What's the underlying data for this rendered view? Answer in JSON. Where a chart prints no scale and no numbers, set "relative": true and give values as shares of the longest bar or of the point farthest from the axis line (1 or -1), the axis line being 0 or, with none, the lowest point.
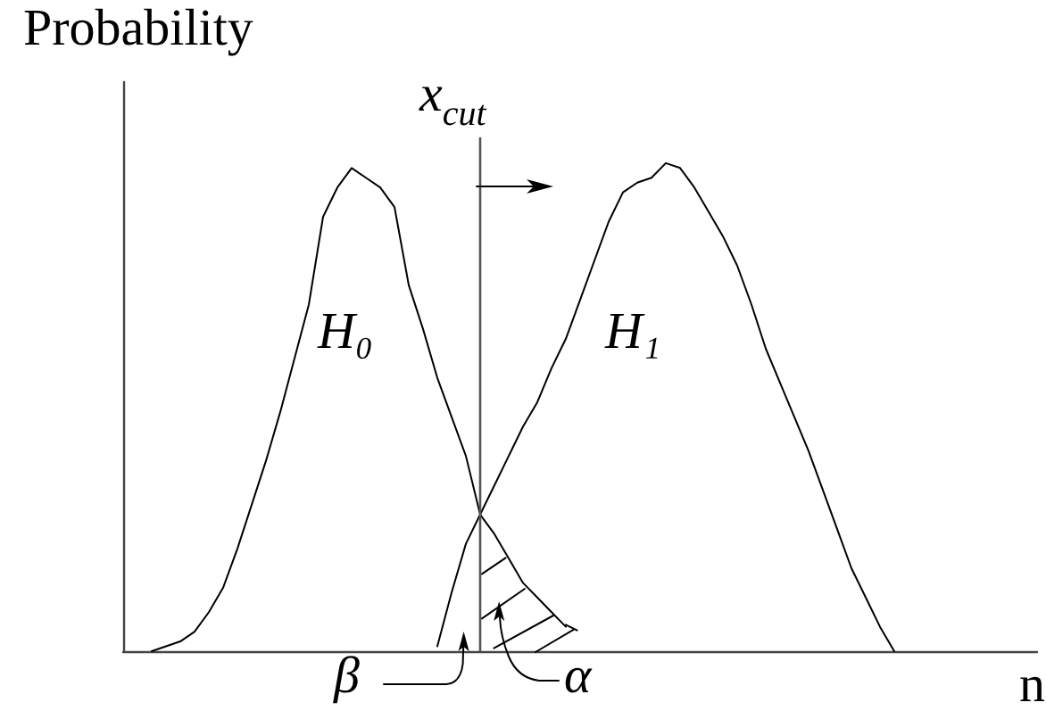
{
  "chart_data": {
    "type": "line",
    "relative": true,
    "ylabel": "Probability",
    "xlabel": "n",
    "marker": "none",
    "categories": [
      null,
      null,
      null,
      null,
      null,
      null,
      null,
      null,
      null,
      null,
      null,
      null,
      null,
      null,
      null,
      null,
      null,
      null,
      null,
      null,
      null,
      null,
      null,
      null,
      null,
      null,
      null,
      null,
      null,
      null,
      null,
      null,
      null,
      null,
      null,
      null,
      null,
      null,
      null,
      null,
      null,
      null,
      null,
      null,
      null,
      null,
      null,
      null,
      null,
      null,
      null,
      null,
      null,
      null,
      null,
      null,
      null,
      null,
      null,
      null,
      null,
      null,
      null,
      null,
      null
    ],
    "series": [
      {
        "name": "H₀",
        "color": "#000000",
        "values": [
          null,
          null,
          0,
          0.01,
          0.02,
          0.04,
          0.08,
          0.13,
          0.21,
          0.3,
          0.39,
          0.49,
          0.6,
          0.71,
          0.89,
          0.95,
          0.99,
          0.97,
          0.95,
          0.91,
          0.75,
          0.66,
          0.56,
          0.48,
          0.4,
          0.28,
          0.24,
          0.19,
          0.14,
          0.11,
          0.08,
          0.05,
          null,
          null,
          null,
          null,
          null,
          null,
          null,
          null,
          null,
          null,
          null,
          null,
          null,
          null,
          null,
          null,
          null,
          null,
          null,
          null,
          null,
          null,
          null,
          null,
          null,
          null,
          null,
          null,
          null,
          null,
          null,
          null,
          null
        ]
      },
      {
        "name": "H₁",
        "color": "#000000",
        "values": [
          null,
          null,
          null,
          null,
          null,
          null,
          null,
          null,
          null,
          null,
          null,
          null,
          null,
          null,
          null,
          null,
          null,
          null,
          null,
          null,
          null,
          null,
          0.01,
          0.12,
          0.22,
          0.28,
          0.34,
          0.4,
          0.46,
          0.51,
          0.58,
          0.64,
          0.72,
          0.8,
          0.88,
          0.94,
          0.96,
          0.97,
          1,
          0.99,
          0.95,
          0.9,
          0.85,
          0.79,
          0.71,
          0.62,
          0.55,
          0.48,
          0.41,
          0.33,
          0.25,
          0.17,
          0.11,
          0.05,
          0,
          null,
          null,
          null,
          null,
          null,
          null,
          null,
          null,
          null,
          null
        ]
      }
    ],
    "annotations": [
      "x$_{cut}$",
      "β",
      "α"
    ]
  }
}
